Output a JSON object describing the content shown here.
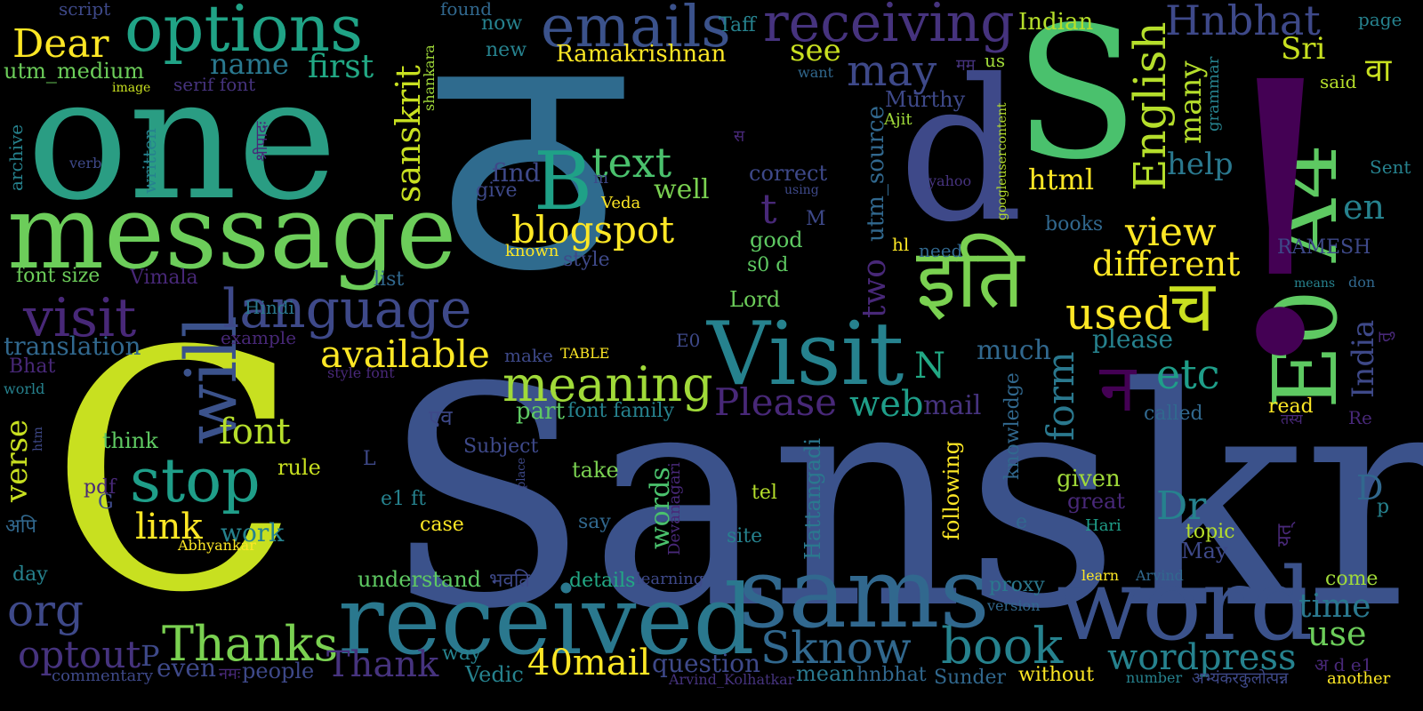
{
  "background": "#000000",
  "palette": {
    "yellow": "#fde725",
    "lime": "#b5de2b",
    "lightgreen": "#6ece58",
    "green": "#35b779",
    "teal": "#1f9e89",
    "steel": "#26828e",
    "blue": "#31688e",
    "indigo": "#3e4989",
    "purple": "#482878",
    "violet": "#440154"
  },
  "words": [
    {
      "t": "Sanskrit",
      "c": "#3b528b"
    },
    {
      "t": "ठ",
      "c": "#2f6b8e"
    },
    {
      "t": "C",
      "c": "#c8e020"
    },
    {
      "t": "one",
      "c": "#2a9d83"
    },
    {
      "t": "message",
      "c": "#6ccd5a"
    },
    {
      "t": "S",
      "c": "#4ac16d"
    },
    {
      "t": "d",
      "c": "#3e4989"
    },
    {
      "t": "received",
      "c": "#2a788e"
    },
    {
      "t": "sams",
      "c": "#31688e"
    },
    {
      "t": "word",
      "c": "#3b528b"
    },
    {
      "t": "Visit",
      "c": "#26828e"
    },
    {
      "t": "E0 A4",
      "c": "#5ec962"
    },
    {
      "t": "!",
      "c": "#440154"
    },
    {
      "t": "इति",
      "c": "#7ad151"
    },
    {
      "t": "च",
      "c": "#c8e020"
    },
    {
      "t": "options",
      "c": "#20a386"
    },
    {
      "t": "emails",
      "c": "#3b528b"
    },
    {
      "t": "receiving",
      "c": "#46337e"
    },
    {
      "t": "Hnbhat",
      "c": "#3e4989"
    },
    {
      "t": "Dear",
      "c": "#fde725"
    },
    {
      "t": "B",
      "c": "#1fa187"
    },
    {
      "t": "text",
      "c": "#4ac16d"
    },
    {
      "t": "blogspot",
      "c": "#fde725"
    },
    {
      "t": "will",
      "c": "#3b528b"
    },
    {
      "t": "language",
      "c": "#3e4989"
    },
    {
      "t": "visit",
      "c": "#482878"
    },
    {
      "t": "stop",
      "c": "#1f9e89"
    },
    {
      "t": "font",
      "c": "#b5de2b"
    },
    {
      "t": "link",
      "c": "#fde725"
    },
    {
      "t": "meaning",
      "c": "#a0da39"
    },
    {
      "t": "available",
      "c": "#fde725"
    },
    {
      "t": "Please",
      "c": "#482878"
    },
    {
      "t": "web",
      "c": "#1f9e89"
    },
    {
      "t": "book",
      "c": "#26828e"
    },
    {
      "t": "Sknow",
      "c": "#31688e"
    },
    {
      "t": "Thanks",
      "c": "#7ad151"
    },
    {
      "t": "Thank",
      "c": "#46337e"
    },
    {
      "t": "optout",
      "c": "#46337e"
    },
    {
      "t": "org",
      "c": "#3e4989"
    },
    {
      "t": "40mail",
      "c": "#fde725"
    },
    {
      "t": "wordpress",
      "c": "#26828e"
    },
    {
      "t": "used",
      "c": "#fde725"
    },
    {
      "t": "different",
      "c": "#fde725"
    },
    {
      "t": "view",
      "c": "#fde725"
    },
    {
      "t": "English",
      "c": "#b5de2b"
    },
    {
      "t": "sanskrit",
      "c": "#c8e020"
    },
    {
      "t": "may",
      "c": "#3e4989"
    },
    {
      "t": "see",
      "c": "#c8e020"
    },
    {
      "t": "first",
      "c": "#22a884"
    },
    {
      "t": "name",
      "c": "#2a788e"
    },
    {
      "t": "utm_medium",
      "c": "#6ccd5a"
    },
    {
      "t": "Ramakrishnan",
      "c": "#fde725"
    },
    {
      "t": "Indian",
      "c": "#b5de2b"
    },
    {
      "t": "Sri",
      "c": "#c8e020"
    },
    {
      "t": "many",
      "c": "#b5de2b"
    },
    {
      "t": "help",
      "c": "#2a788e"
    },
    {
      "t": "html",
      "c": "#fde725"
    },
    {
      "t": "en",
      "c": "#26828e"
    },
    {
      "t": "etc",
      "c": "#1f9e89"
    },
    {
      "t": "form",
      "c": "#2a788e"
    },
    {
      "t": "N",
      "c": "#22a884"
    },
    {
      "t": "India",
      "c": "#3e4989"
    },
    {
      "t": "translation",
      "c": "#31688e"
    },
    {
      "t": "verse",
      "c": "#c8e020"
    },
    {
      "t": "Dr",
      "c": "#26828e"
    },
    {
      "t": "D",
      "c": "#31688e"
    },
    {
      "t": "time",
      "c": "#2a788e"
    },
    {
      "t": "use",
      "c": "#6ccd5a"
    },
    {
      "t": "words",
      "c": "#4ac16d"
    },
    {
      "t": "question",
      "c": "#3e4989"
    },
    {
      "t": "even",
      "c": "#3e4989"
    },
    {
      "t": "people",
      "c": "#3e4989"
    },
    {
      "t": "two",
      "c": "#482878"
    },
    {
      "t": "utm_source",
      "c": "#31688e"
    },
    {
      "t": "Murthy",
      "c": "#3e4989"
    },
    {
      "t": "much",
      "c": "#31688e"
    },
    {
      "t": "please",
      "c": "#26828e"
    },
    {
      "t": "mail",
      "c": "#46337e"
    },
    {
      "t": "part",
      "c": "#5ec962"
    },
    {
      "t": "font family",
      "c": "#26828e"
    },
    {
      "t": "find",
      "c": "#3e4989"
    },
    {
      "t": "give",
      "c": "#3e4989"
    },
    {
      "t": "Veda",
      "c": "#fde725"
    },
    {
      "t": "style",
      "c": "#3e4989"
    },
    {
      "t": "known",
      "c": "#fde725"
    },
    {
      "t": "correct",
      "c": "#3e4989"
    },
    {
      "t": "well",
      "c": "#7ad151"
    },
    {
      "t": "good",
      "c": "#5ec962"
    },
    {
      "t": "s0 d",
      "c": "#5ec962"
    },
    {
      "t": "Lord",
      "c": "#6ccd5a"
    },
    {
      "t": "font size",
      "c": "#6ccd5a"
    },
    {
      "t": "Vimala",
      "c": "#482878"
    },
    {
      "t": "Hindi",
      "c": "#2a788e"
    },
    {
      "t": "list",
      "c": "#31688e"
    },
    {
      "t": "example",
      "c": "#482878"
    },
    {
      "t": "Bhat",
      "c": "#482878"
    },
    {
      "t": "style font",
      "c": "#482878"
    },
    {
      "t": "think",
      "c": "#5ec962"
    },
    {
      "t": "rule",
      "c": "#c8e020"
    },
    {
      "t": "work",
      "c": "#26828e"
    },
    {
      "t": "pdf",
      "c": "#482878"
    },
    {
      "t": "G",
      "c": "#3e4989"
    },
    {
      "t": "Abhyankar",
      "c": "#fde725"
    },
    {
      "t": "day",
      "c": "#26828e"
    },
    {
      "t": "अपि",
      "c": "#31688e"
    },
    {
      "t": "commentary",
      "c": "#3e4989"
    },
    {
      "t": "नमः",
      "c": "#482878"
    },
    {
      "t": "Vedic",
      "c": "#26828e"
    },
    {
      "t": "way",
      "c": "#26828e"
    },
    {
      "t": "understand",
      "c": "#5ec962"
    },
    {
      "t": "भवति",
      "c": "#3e4989"
    },
    {
      "t": "details",
      "c": "#22a884"
    },
    {
      "t": "learning",
      "c": "#3e4989"
    },
    {
      "t": "Arvind_Kolhatkar",
      "c": "#46337e"
    },
    {
      "t": "mean",
      "c": "#2a788e"
    },
    {
      "t": "hnbhat",
      "c": "#31688e"
    },
    {
      "t": "Sunder",
      "c": "#31688e"
    },
    {
      "t": "without",
      "c": "#fde725"
    },
    {
      "t": "number",
      "c": "#26828e"
    },
    {
      "t": "अभ्यंकरकुलोत्पन्न",
      "c": "#3e4989"
    },
    {
      "t": "another",
      "c": "#fde725"
    },
    {
      "t": "अ d e1",
      "c": "#482878"
    },
    {
      "t": "come",
      "c": "#a0da39"
    },
    {
      "t": "May",
      "c": "#3e4989"
    },
    {
      "t": "topic",
      "c": "#b5de2b"
    },
    {
      "t": "p",
      "c": "#26828e"
    },
    {
      "t": "यत्",
      "c": "#482878"
    },
    {
      "t": "Hari",
      "c": "#1f9e89"
    },
    {
      "t": "great",
      "c": "#482878"
    },
    {
      "t": "given",
      "c": "#a0da39"
    },
    {
      "t": "learn",
      "c": "#fde725"
    },
    {
      "t": "Arvind",
      "c": "#31688e"
    },
    {
      "t": "proxy",
      "c": "#2a788e"
    },
    {
      "t": "version",
      "c": "#31688e"
    },
    {
      "t": "following",
      "c": "#fde725"
    },
    {
      "t": "knowledge",
      "c": "#31688e"
    },
    {
      "t": "Hattangadi",
      "c": "#2a788e"
    },
    {
      "t": "Devanagari",
      "c": "#482878"
    },
    {
      "t": "site",
      "c": "#26828e"
    },
    {
      "t": "tel",
      "c": "#b5de2b"
    },
    {
      "t": "say",
      "c": "#31688e"
    },
    {
      "t": "take",
      "c": "#7ad151"
    },
    {
      "t": "case",
      "c": "#fde725"
    },
    {
      "t": "e1 ft",
      "c": "#26828e"
    },
    {
      "t": "Subject",
      "c": "#3e4989"
    },
    {
      "t": "एव",
      "c": "#3e4989"
    },
    {
      "t": "place",
      "c": "#3e4989"
    },
    {
      "t": "L",
      "c": "#3e4989"
    },
    {
      "t": "e",
      "c": "#31688e"
    },
    {
      "t": "called",
      "c": "#31688e"
    },
    {
      "t": "read",
      "c": "#fde725"
    },
    {
      "t": "तस्य",
      "c": "#482878"
    },
    {
      "t": "Re",
      "c": "#482878"
    },
    {
      "t": "तु",
      "c": "#482878"
    },
    {
      "t": "don",
      "c": "#31688e"
    },
    {
      "t": "means",
      "c": "#26828e"
    },
    {
      "t": "RAMESH",
      "c": "#3e4989"
    },
    {
      "t": "Sent",
      "c": "#26828e"
    },
    {
      "t": "वा",
      "c": "#c8e020"
    },
    {
      "t": "said",
      "c": "#b5de2b"
    },
    {
      "t": "page",
      "c": "#26828e"
    },
    {
      "t": "grammar",
      "c": "#26828e"
    },
    {
      "t": "books",
      "c": "#31688e"
    },
    {
      "t": "need",
      "c": "#31688e"
    },
    {
      "t": "hl",
      "c": "#fde725"
    },
    {
      "t": "googleusercontent",
      "c": "#b5de2b"
    },
    {
      "t": "yahoo",
      "c": "#46337e"
    },
    {
      "t": "Ajit",
      "c": "#a0da39"
    },
    {
      "t": "us",
      "c": "#a0da39"
    },
    {
      "t": "मम",
      "c": "#46337e"
    },
    {
      "t": "want",
      "c": "#31688e"
    },
    {
      "t": "Taff",
      "c": "#26828e"
    },
    {
      "t": "now",
      "c": "#26828e"
    },
    {
      "t": "new",
      "c": "#26828e"
    },
    {
      "t": "found",
      "c": "#31688e"
    },
    {
      "t": "script",
      "c": "#3e4989"
    },
    {
      "t": "image",
      "c": "#c8e020"
    },
    {
      "t": "serif font",
      "c": "#46337e"
    },
    {
      "t": "श्रीपादः",
      "c": "#482878"
    },
    {
      "t": "shankara",
      "c": "#a0da39"
    },
    {
      "t": "written",
      "c": "#26828e"
    },
    {
      "t": "verb",
      "c": "#3e4989"
    },
    {
      "t": "archive",
      "c": "#26828e"
    },
    {
      "t": "t",
      "c": "#482878"
    },
    {
      "t": "m",
      "c": "#3e4989"
    },
    {
      "t": "M",
      "c": "#3e4989"
    },
    {
      "t": "using",
      "c": "#3e4989"
    },
    {
      "t": "स",
      "c": "#482878"
    },
    {
      "t": "न",
      "c": "#440154"
    },
    {
      "t": "make",
      "c": "#3e4989"
    },
    {
      "t": "TABLE",
      "c": "#fde725"
    },
    {
      "t": "E0",
      "c": "#3e4989"
    },
    {
      "t": "world",
      "c": "#26828e"
    },
    {
      "t": "htm",
      "c": "#3e4989"
    },
    {
      "t": "P",
      "c": "#3e4989"
    }
  ]
}
